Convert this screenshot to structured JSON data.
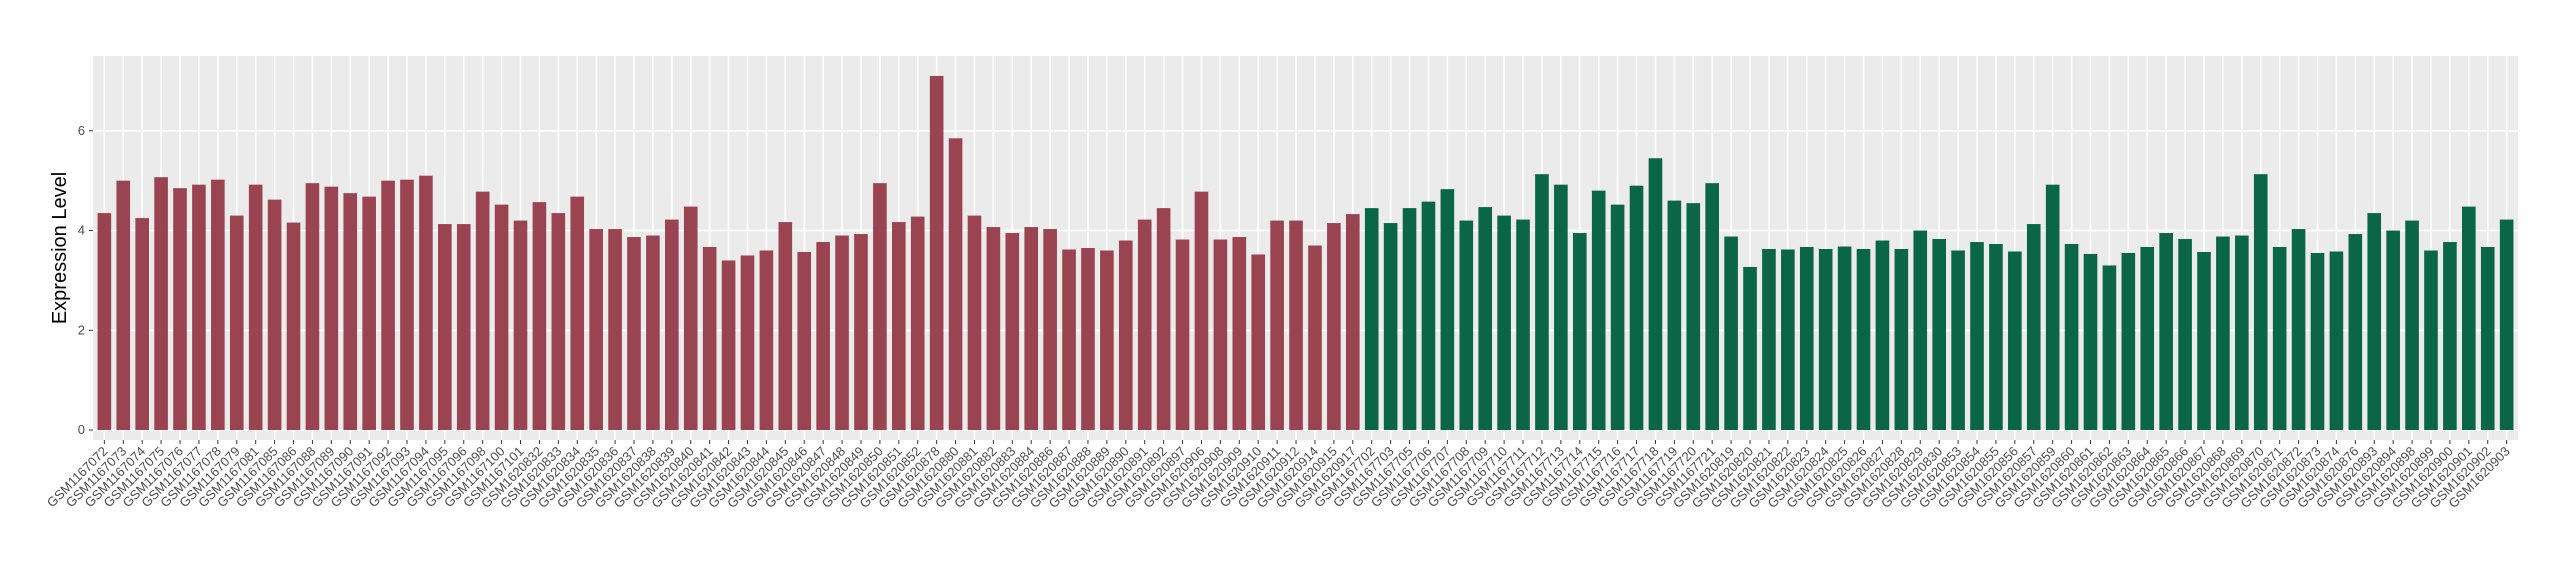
{
  "chart_data": {
    "type": "bar",
    "y_label": "Expression Level",
    "categories": [
      "GSM1167072",
      "GSM1167073",
      "GSM1167074",
      "GSM1167075",
      "GSM1167076",
      "GSM1167077",
      "GSM1167078",
      "GSM1167079",
      "GSM1167081",
      "GSM1167085",
      "GSM1167086",
      "GSM1167088",
      "GSM1167089",
      "GSM1167090",
      "GSM1167091",
      "GSM1167092",
      "GSM1167093",
      "GSM1167094",
      "GSM1167095",
      "GSM1167096",
      "GSM1167098",
      "GSM1167100",
      "GSM1167101",
      "GSM1620832",
      "GSM1620833",
      "GSM1620834",
      "GSM1620835",
      "GSM1620836",
      "GSM1620837",
      "GSM1620838",
      "GSM1620839",
      "GSM1620840",
      "GSM1620841",
      "GSM1620842",
      "GSM1620843",
      "GSM1620844",
      "GSM1620845",
      "GSM1620846",
      "GSM1620847",
      "GSM1620848",
      "GSM1620849",
      "GSM1620850",
      "GSM1620851",
      "GSM1620852",
      "GSM1620878",
      "GSM1620880",
      "GSM1620881",
      "GSM1620882",
      "GSM1620883",
      "GSM1620884",
      "GSM1620886",
      "GSM1620887",
      "GSM1620888",
      "GSM1620889",
      "GSM1620890",
      "GSM1620891",
      "GSM1620892",
      "GSM1620897",
      "GSM1620906",
      "GSM1620908",
      "GSM1620909",
      "GSM1620910",
      "GSM1620911",
      "GSM1620912",
      "GSM1620914",
      "GSM1620915",
      "GSM1620917",
      "GSM1167702",
      "GSM1167703",
      "GSM1167705",
      "GSM1167706",
      "GSM1167707",
      "GSM1167708",
      "GSM1167709",
      "GSM1167710",
      "GSM1167711",
      "GSM1167712",
      "GSM1167713",
      "GSM1167714",
      "GSM1167715",
      "GSM1167716",
      "GSM1167717",
      "GSM1167718",
      "GSM1167719",
      "GSM1167720",
      "GSM1167721",
      "GSM1620819",
      "GSM1620820",
      "GSM1620821",
      "GSM1620822",
      "GSM1620823",
      "GSM1620824",
      "GSM1620825",
      "GSM1620826",
      "GSM1620827",
      "GSM1620828",
      "GSM1620829",
      "GSM1620830",
      "GSM1620853",
      "GSM1620854",
      "GSM1620855",
      "GSM1620856",
      "GSM1620857",
      "GSM1620859",
      "GSM1620860",
      "GSM1620861",
      "GSM1620862",
      "GSM1620863",
      "GSM1620864",
      "GSM1620865",
      "GSM1620866",
      "GSM1620867",
      "GSM1620868",
      "GSM1620869",
      "GSM1620870",
      "GSM1620871",
      "GSM1620872",
      "GSM1620873",
      "GSM1620874",
      "GSM1620876",
      "GSM1620893",
      "GSM1620894",
      "GSM1620898",
      "GSM1620899",
      "GSM1620900",
      "GSM1620901",
      "GSM1620902",
      "GSM1620903"
    ],
    "series": [
      {
        "color": "#9a4451",
        "values": [
          4.35,
          5.0,
          4.25,
          5.07,
          4.85,
          4.92,
          5.02,
          4.3,
          4.92,
          4.62,
          4.16,
          4.95,
          4.88,
          4.75,
          4.68,
          5.0,
          5.02,
          5.1,
          4.13,
          4.13,
          4.78,
          4.52,
          4.2,
          4.57,
          4.35,
          4.68,
          4.03,
          4.03,
          3.87,
          3.9,
          4.22,
          4.48,
          3.67,
          3.4,
          3.5,
          3.6,
          4.17,
          3.57,
          3.77,
          3.9,
          3.93,
          4.95,
          4.17,
          4.28,
          7.1,
          5.85,
          4.3,
          4.07,
          3.95,
          4.07,
          4.03,
          3.62,
          3.65,
          3.6,
          3.8,
          4.22,
          4.45,
          3.82,
          4.78,
          3.82,
          3.87,
          3.52,
          4.2,
          4.2,
          3.7,
          4.15,
          4.33,
          null,
          null,
          null,
          null,
          null,
          null,
          null,
          null,
          null,
          null,
          null,
          null,
          null,
          null,
          null,
          null,
          null,
          null,
          null,
          null,
          null,
          null,
          null,
          null,
          null,
          null,
          null,
          null,
          null,
          null,
          null,
          null,
          null,
          null,
          null,
          null,
          null,
          null,
          null,
          null,
          null,
          null,
          null,
          null,
          null,
          null,
          null,
          null,
          null,
          null,
          null,
          null,
          null,
          null,
          null,
          null,
          null,
          null,
          null,
          null,
          null
        ]
      },
      {
        "color": "#0b6647",
        "values": [
          null,
          null,
          null,
          null,
          null,
          null,
          null,
          null,
          null,
          null,
          null,
          null,
          null,
          null,
          null,
          null,
          null,
          null,
          null,
          null,
          null,
          null,
          null,
          null,
          null,
          null,
          null,
          null,
          null,
          null,
          null,
          null,
          null,
          null,
          null,
          null,
          null,
          null,
          null,
          null,
          null,
          null,
          null,
          null,
          null,
          null,
          null,
          null,
          null,
          null,
          null,
          null,
          null,
          null,
          null,
          null,
          null,
          null,
          null,
          null,
          null,
          null,
          null,
          null,
          null,
          null,
          null,
          4.45,
          4.15,
          4.45,
          4.58,
          4.83,
          4.2,
          4.47,
          4.3,
          4.22,
          5.13,
          4.92,
          3.95,
          4.8,
          4.52,
          4.9,
          5.45,
          4.6,
          4.55,
          4.95,
          3.88,
          3.27,
          3.63,
          3.62,
          3.67,
          3.63,
          3.68,
          3.63,
          3.8,
          3.63,
          4.0,
          3.83,
          3.6,
          3.77,
          3.73,
          3.58,
          4.13,
          4.92,
          3.73,
          3.53,
          3.3,
          3.55,
          3.67,
          3.95,
          3.83,
          3.57,
          3.88,
          3.9,
          5.13,
          3.67,
          4.03,
          3.55,
          3.58,
          3.93,
          4.35,
          4.0,
          4.2,
          3.6,
          3.77,
          4.48,
          3.67,
          4.22
        ]
      }
    ],
    "ylim": [
      -0.2,
      7.5
    ],
    "yticks": [
      0,
      2,
      4,
      6
    ],
    "grid": true
  }
}
